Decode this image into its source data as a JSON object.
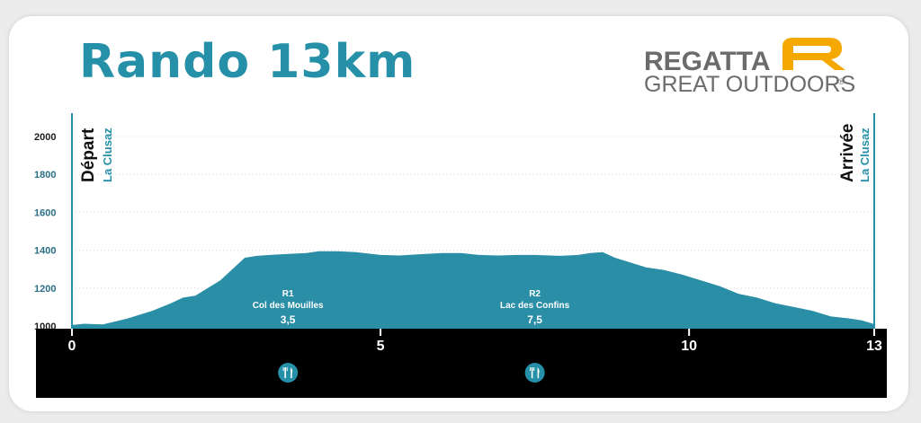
{
  "title": "Rando 13km",
  "brand": {
    "line1": "REGATTA",
    "line2": "GREAT OUTDOORS",
    "mark": "®",
    "accent": "#f5a800"
  },
  "colors": {
    "profile": "#2a8ea6",
    "accent": "#2690a8",
    "axis_band": "#000000"
  },
  "start": {
    "label": "Départ",
    "place": "La Clusaz"
  },
  "end": {
    "label": "Arrivée",
    "place": "La Clusaz"
  },
  "ravito": [
    {
      "id": "R1",
      "name": "Col des Mouilles",
      "km_label": "3,5",
      "km": 3.5,
      "icon": "fork-knife-icon"
    },
    {
      "id": "R2",
      "name": "Lac des Confins",
      "km_label": "7,5",
      "km": 7.5,
      "icon": "fork-knife-icon"
    }
  ],
  "chart_data": {
    "type": "area",
    "xlim": [
      0,
      13
    ],
    "ylim": [
      1000,
      2000
    ],
    "x_ticks": [
      "0",
      "5",
      "10",
      "13"
    ],
    "x_tick_values": [
      0,
      5,
      10,
      13
    ],
    "y_ticks": [
      "1000",
      "1200",
      "1400",
      "1600",
      "1800",
      "2000"
    ],
    "y_tick_values": [
      1000,
      1200,
      1400,
      1600,
      1800,
      2000
    ],
    "grid": true,
    "x": [
      0,
      0.2,
      0.5,
      0.9,
      1.3,
      1.6,
      1.8,
      2.0,
      2.2,
      2.4,
      2.6,
      2.8,
      3.0,
      3.2,
      3.5,
      3.8,
      4.0,
      4.3,
      4.6,
      5.0,
      5.3,
      5.6,
      6.0,
      6.3,
      6.6,
      6.9,
      7.2,
      7.5,
      7.9,
      8.2,
      8.4,
      8.6,
      8.8,
      9.0,
      9.3,
      9.6,
      9.9,
      10.2,
      10.5,
      10.8,
      11.1,
      11.4,
      11.7,
      12.0,
      12.3,
      12.6,
      12.8,
      13.0
    ],
    "y": [
      1005,
      1012,
      1008,
      1040,
      1080,
      1120,
      1150,
      1160,
      1200,
      1240,
      1300,
      1360,
      1370,
      1375,
      1380,
      1385,
      1395,
      1395,
      1390,
      1375,
      1372,
      1378,
      1385,
      1385,
      1375,
      1372,
      1375,
      1375,
      1370,
      1375,
      1385,
      1390,
      1360,
      1340,
      1310,
      1295,
      1270,
      1240,
      1210,
      1170,
      1150,
      1120,
      1100,
      1080,
      1050,
      1040,
      1030,
      1010
    ]
  }
}
